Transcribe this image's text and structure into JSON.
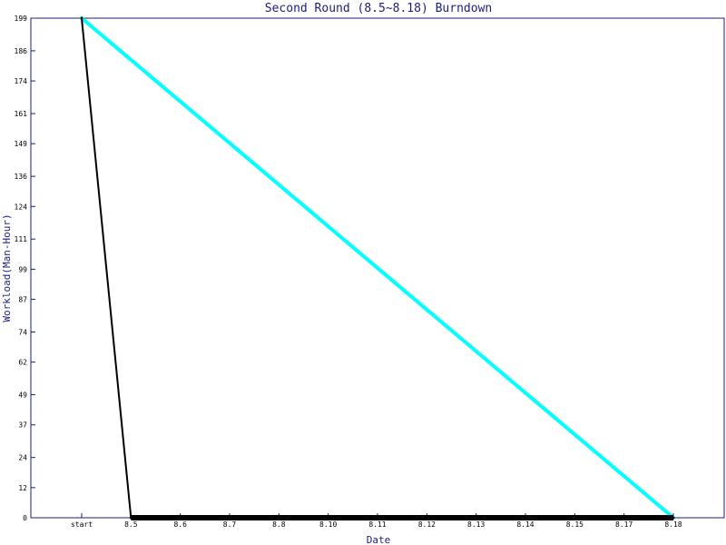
{
  "chart_data": {
    "type": "line",
    "title": "Second Round (8.5~8.18) Burndown",
    "xlabel": "Date",
    "ylabel": "Workload(Man-Hour)",
    "categories": [
      "start",
      "8.5",
      "8.6",
      "8.7",
      "8.8",
      "8.10",
      "8.11",
      "8.12",
      "8.13",
      "8.14",
      "8.15",
      "8.17",
      "8.18"
    ],
    "y_ticks": [
      0,
      12,
      24,
      37,
      49,
      62,
      74,
      87,
      99,
      111,
      124,
      136,
      149,
      161,
      174,
      186,
      199
    ],
    "ylim": [
      0,
      199
    ],
    "grid": false,
    "series": [
      {
        "color": "#00ffff",
        "values": [
          199,
          null,
          null,
          null,
          null,
          null,
          null,
          null,
          null,
          null,
          null,
          null,
          0
        ]
      },
      {
        "color": "#000000",
        "values": [
          199,
          0,
          0,
          0,
          0,
          0,
          0,
          0,
          0,
          0,
          0,
          0,
          0
        ]
      }
    ],
    "colors": {
      "frame": "#1c1c80",
      "text": "#1c1c80",
      "tick_text": "#000000"
    }
  }
}
